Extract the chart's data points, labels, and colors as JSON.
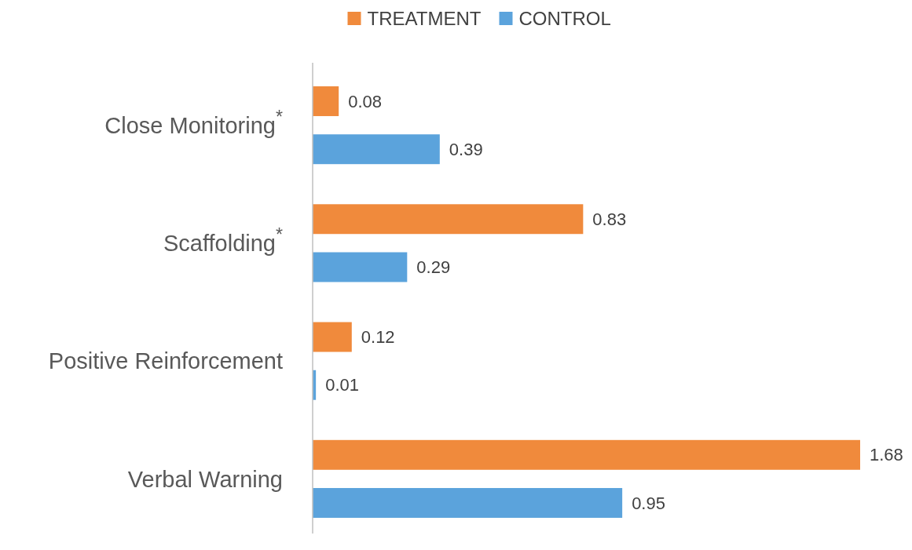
{
  "chart_data": {
    "type": "bar",
    "orientation": "horizontal",
    "categories": [
      "Close Monitoring$^{*}$",
      "Scaffolding$^{*}$",
      "Positive Reinforcement",
      "Verbal Warning"
    ],
    "series": [
      {
        "name": "TREATMENT",
        "color": "#f08a3c",
        "values": [
          0.08,
          0.83,
          0.12,
          1.68
        ]
      },
      {
        "name": "CONTROL",
        "color": "#5ba3dc",
        "values": [
          0.39,
          0.29,
          0.01,
          0.95
        ]
      }
    ],
    "data_labels": true,
    "legend": "top",
    "tick_labels": "y"
  }
}
